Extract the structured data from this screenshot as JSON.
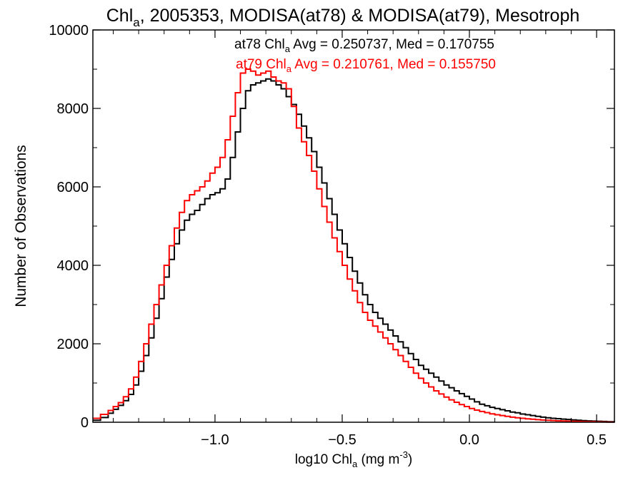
{
  "chart_data": {
    "type": "line",
    "title": {
      "pre": "Chl",
      "sub": "a",
      "post": ", 2005353, MODISA(at78) & MODISA(at79), Mesotroph"
    },
    "xlabel": {
      "pre": "log10 Chl",
      "sub": "a",
      "mid": " (mg m",
      "sup": "-3",
      "post": ")"
    },
    "ylabel": "Number of Observations",
    "xlim": [
      -1.48,
      0.57
    ],
    "ylim": [
      0,
      10000
    ],
    "xticks": [
      -1.0,
      -0.5,
      0.0,
      0.5
    ],
    "xtick_labels": [
      "−1.0",
      "−0.5",
      "0.0",
      "0.5"
    ],
    "yticks": [
      0,
      2000,
      4000,
      6000,
      8000,
      10000
    ],
    "ytick_labels": [
      "0",
      "2000",
      "4000",
      "6000",
      "8000",
      "10000"
    ],
    "grid": false,
    "step": true,
    "series": [
      {
        "name": "at78",
        "color": "#000000",
        "label": {
          "pre": "at78 Chl",
          "sub": "a",
          "post": " Avg = 0.250737, Med = 0.170755"
        },
        "points": [
          [
            -1.48,
            50
          ],
          [
            -1.45,
            120
          ],
          [
            -1.42,
            230
          ],
          [
            -1.4,
            330
          ],
          [
            -1.38,
            430
          ],
          [
            -1.36,
            550
          ],
          [
            -1.34,
            710
          ],
          [
            -1.32,
            950
          ],
          [
            -1.3,
            1300
          ],
          [
            -1.28,
            1700
          ],
          [
            -1.26,
            2150
          ],
          [
            -1.24,
            2650
          ],
          [
            -1.22,
            3150
          ],
          [
            -1.2,
            3700
          ],
          [
            -1.18,
            4150
          ],
          [
            -1.16,
            4550
          ],
          [
            -1.14,
            4900
          ],
          [
            -1.12,
            5150
          ],
          [
            -1.1,
            5300
          ],
          [
            -1.08,
            5400
          ],
          [
            -1.06,
            5550
          ],
          [
            -1.04,
            5700
          ],
          [
            -1.02,
            5800
          ],
          [
            -1.0,
            5850
          ],
          [
            -0.98,
            5950
          ],
          [
            -0.96,
            6200
          ],
          [
            -0.94,
            6750
          ],
          [
            -0.92,
            7400
          ],
          [
            -0.9,
            8000
          ],
          [
            -0.88,
            8450
          ],
          [
            -0.86,
            8600
          ],
          [
            -0.84,
            8650
          ],
          [
            -0.82,
            8700
          ],
          [
            -0.8,
            8750
          ],
          [
            -0.78,
            8700
          ],
          [
            -0.76,
            8600
          ],
          [
            -0.74,
            8500
          ],
          [
            -0.72,
            8300
          ],
          [
            -0.7,
            8100
          ],
          [
            -0.68,
            7850
          ],
          [
            -0.66,
            7550
          ],
          [
            -0.64,
            7250
          ],
          [
            -0.62,
            6900
          ],
          [
            -0.6,
            6500
          ],
          [
            -0.58,
            6100
          ],
          [
            -0.56,
            5700
          ],
          [
            -0.54,
            5300
          ],
          [
            -0.52,
            4900
          ],
          [
            -0.5,
            4550
          ],
          [
            -0.48,
            4200
          ],
          [
            -0.46,
            3850
          ],
          [
            -0.44,
            3550
          ],
          [
            -0.42,
            3250
          ],
          [
            -0.4,
            3000
          ],
          [
            -0.38,
            2800
          ],
          [
            -0.36,
            2650
          ],
          [
            -0.34,
            2500
          ],
          [
            -0.32,
            2350
          ],
          [
            -0.3,
            2200
          ],
          [
            -0.28,
            2050
          ],
          [
            -0.26,
            1900
          ],
          [
            -0.24,
            1750
          ],
          [
            -0.22,
            1600
          ],
          [
            -0.2,
            1450
          ],
          [
            -0.18,
            1350
          ],
          [
            -0.16,
            1250
          ],
          [
            -0.14,
            1150
          ],
          [
            -0.12,
            1050
          ],
          [
            -0.1,
            950
          ],
          [
            -0.08,
            880
          ],
          [
            -0.06,
            800
          ],
          [
            -0.04,
            730
          ],
          [
            -0.02,
            660
          ],
          [
            0.0,
            590
          ],
          [
            0.02,
            520
          ],
          [
            0.04,
            460
          ],
          [
            0.06,
            420
          ],
          [
            0.08,
            380
          ],
          [
            0.1,
            350
          ],
          [
            0.12,
            320
          ],
          [
            0.14,
            290
          ],
          [
            0.16,
            260
          ],
          [
            0.18,
            240
          ],
          [
            0.2,
            210
          ],
          [
            0.22,
            190
          ],
          [
            0.24,
            170
          ],
          [
            0.26,
            150
          ],
          [
            0.28,
            130
          ],
          [
            0.3,
            115
          ],
          [
            0.32,
            100
          ],
          [
            0.34,
            90
          ],
          [
            0.36,
            80
          ],
          [
            0.38,
            70
          ],
          [
            0.4,
            60
          ],
          [
            0.42,
            50
          ],
          [
            0.44,
            40
          ],
          [
            0.46,
            35
          ],
          [
            0.48,
            30
          ],
          [
            0.5,
            25
          ],
          [
            0.52,
            20
          ],
          [
            0.54,
            15
          ],
          [
            0.57,
            10
          ]
        ]
      },
      {
        "name": "at79",
        "color": "#ff0000",
        "label": {
          "pre": "at79 Chl",
          "sub": "a",
          "post": " Avg = 0.210761, Med = 0.155750"
        },
        "points": [
          [
            -1.48,
            100
          ],
          [
            -1.45,
            200
          ],
          [
            -1.42,
            300
          ],
          [
            -1.4,
            400
          ],
          [
            -1.38,
            500
          ],
          [
            -1.36,
            650
          ],
          [
            -1.34,
            850
          ],
          [
            -1.32,
            1150
          ],
          [
            -1.3,
            1550
          ],
          [
            -1.28,
            2000
          ],
          [
            -1.26,
            2500
          ],
          [
            -1.24,
            3000
          ],
          [
            -1.22,
            3500
          ],
          [
            -1.2,
            4000
          ],
          [
            -1.18,
            4500
          ],
          [
            -1.16,
            4950
          ],
          [
            -1.14,
            5350
          ],
          [
            -1.12,
            5650
          ],
          [
            -1.1,
            5800
          ],
          [
            -1.08,
            5900
          ],
          [
            -1.06,
            6000
          ],
          [
            -1.04,
            6150
          ],
          [
            -1.02,
            6350
          ],
          [
            -1.0,
            6500
          ],
          [
            -0.98,
            6750
          ],
          [
            -0.96,
            7200
          ],
          [
            -0.94,
            7800
          ],
          [
            -0.92,
            8400
          ],
          [
            -0.9,
            8900
          ],
          [
            -0.88,
            9000
          ],
          [
            -0.86,
            8950
          ],
          [
            -0.84,
            8850
          ],
          [
            -0.82,
            8900
          ],
          [
            -0.8,
            8950
          ],
          [
            -0.78,
            8800
          ],
          [
            -0.76,
            8700
          ],
          [
            -0.74,
            8650
          ],
          [
            -0.72,
            8500
          ],
          [
            -0.7,
            8050
          ],
          [
            -0.68,
            7500
          ],
          [
            -0.66,
            7150
          ],
          [
            -0.64,
            6800
          ],
          [
            -0.62,
            6400
          ],
          [
            -0.6,
            5950
          ],
          [
            -0.58,
            5500
          ],
          [
            -0.56,
            5100
          ],
          [
            -0.54,
            4700
          ],
          [
            -0.52,
            4350
          ],
          [
            -0.5,
            4000
          ],
          [
            -0.48,
            3650
          ],
          [
            -0.46,
            3350
          ],
          [
            -0.44,
            3050
          ],
          [
            -0.42,
            2800
          ],
          [
            -0.4,
            2600
          ],
          [
            -0.38,
            2450
          ],
          [
            -0.36,
            2300
          ],
          [
            -0.34,
            2150
          ],
          [
            -0.32,
            2000
          ],
          [
            -0.3,
            1850
          ],
          [
            -0.28,
            1700
          ],
          [
            -0.26,
            1550
          ],
          [
            -0.24,
            1400
          ],
          [
            -0.22,
            1250
          ],
          [
            -0.2,
            1120
          ],
          [
            -0.18,
            1000
          ],
          [
            -0.16,
            900
          ],
          [
            -0.14,
            800
          ],
          [
            -0.12,
            720
          ],
          [
            -0.1,
            640
          ],
          [
            -0.08,
            570
          ],
          [
            -0.06,
            510
          ],
          [
            -0.04,
            450
          ],
          [
            -0.02,
            400
          ],
          [
            0.0,
            350
          ],
          [
            0.02,
            310
          ],
          [
            0.04,
            275
          ],
          [
            0.06,
            245
          ],
          [
            0.08,
            215
          ],
          [
            0.1,
            190
          ],
          [
            0.12,
            170
          ],
          [
            0.14,
            150
          ],
          [
            0.16,
            130
          ],
          [
            0.18,
            115
          ],
          [
            0.2,
            100
          ],
          [
            0.22,
            88
          ],
          [
            0.24,
            76
          ],
          [
            0.26,
            66
          ],
          [
            0.28,
            57
          ],
          [
            0.3,
            50
          ],
          [
            0.32,
            43
          ],
          [
            0.34,
            37
          ],
          [
            0.36,
            32
          ],
          [
            0.38,
            28
          ],
          [
            0.4,
            24
          ],
          [
            0.42,
            20
          ],
          [
            0.44,
            17
          ],
          [
            0.46,
            14
          ],
          [
            0.48,
            12
          ],
          [
            0.5,
            10
          ],
          [
            0.52,
            8
          ],
          [
            0.54,
            6
          ],
          [
            0.57,
            5
          ]
        ]
      }
    ]
  }
}
